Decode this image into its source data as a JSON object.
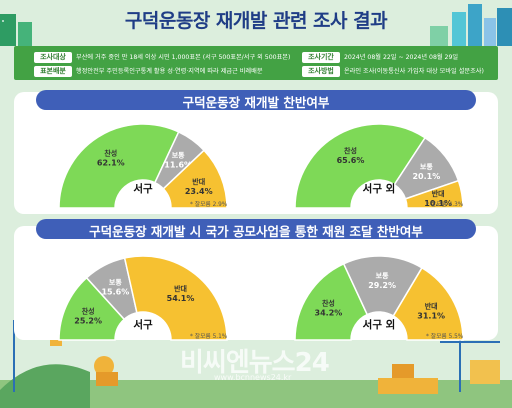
{
  "title": "구덕운동장 재개발 관련 조사 결과",
  "info": {
    "target_label": "조사대상",
    "target_text": "부산에 거주 중인 만 18세 이상 시민 1,000표본 (서구 500표본/서구 외 500표본)",
    "period_label": "조사기간",
    "period_text": "2024년 08월 22일 ~ 2024년 08월 29일",
    "sample_label": "표본배분",
    "sample_text": "행정안전부 주민등록인구통계 활용 성·연령·지역에 따라 제급근 비례배분",
    "method_label": "조사방법",
    "method_text": "온라인 조사(이동통신사 가입자 대상 모바일 설문조사)"
  },
  "watermark": {
    "brand": "비씨엔뉴스24",
    "url": "www.bcnnews24.kr"
  },
  "colors": {
    "agree": "#7ed957",
    "neutral": "#ababab",
    "oppose": "#f6c131",
    "navy": "#3f5fb8",
    "green_band": "#43a244"
  },
  "chart_data": [
    {
      "type": "pie",
      "title": "구덕운동장 재개발 찬반여부",
      "region": "서구",
      "categories": [
        "찬성",
        "보통",
        "반대"
      ],
      "values": [
        62.1,
        11.6,
        23.4
      ],
      "labels": [
        "62.1%",
        "11.6%",
        "23.4%"
      ],
      "margin_note": "* 잘모름 2.9%"
    },
    {
      "type": "pie",
      "title": "구덕운동장 재개발 찬반여부",
      "region": "서구 외",
      "categories": [
        "찬성",
        "보통",
        "반대"
      ],
      "values": [
        65.6,
        20.1,
        10.1
      ],
      "labels": [
        "65.6%",
        "20.1%",
        "10.1%"
      ],
      "margin_note": "* 잘모름 4.3%"
    },
    {
      "type": "pie",
      "title": "구덕운동장 재개발 시 국가 공모사업을 통한 재원 조달 찬반여부",
      "region": "서구",
      "categories": [
        "찬성",
        "보통",
        "반대"
      ],
      "values": [
        25.2,
        15.6,
        54.1
      ],
      "labels": [
        "25.2%",
        "15.6%",
        "54.1%"
      ],
      "margin_note": "* 잘모름 5.1%"
    },
    {
      "type": "pie",
      "title": "구덕운동장 재개발 시 국가 공모사업을 통한 재원 조달 찬반여부",
      "region": "서구 외",
      "categories": [
        "찬성",
        "보통",
        "반대"
      ],
      "values": [
        34.2,
        29.2,
        31.1
      ],
      "labels": [
        "34.2%",
        "29.2%",
        "31.1%"
      ],
      "margin_note": "* 잘모름 5.5%"
    }
  ]
}
